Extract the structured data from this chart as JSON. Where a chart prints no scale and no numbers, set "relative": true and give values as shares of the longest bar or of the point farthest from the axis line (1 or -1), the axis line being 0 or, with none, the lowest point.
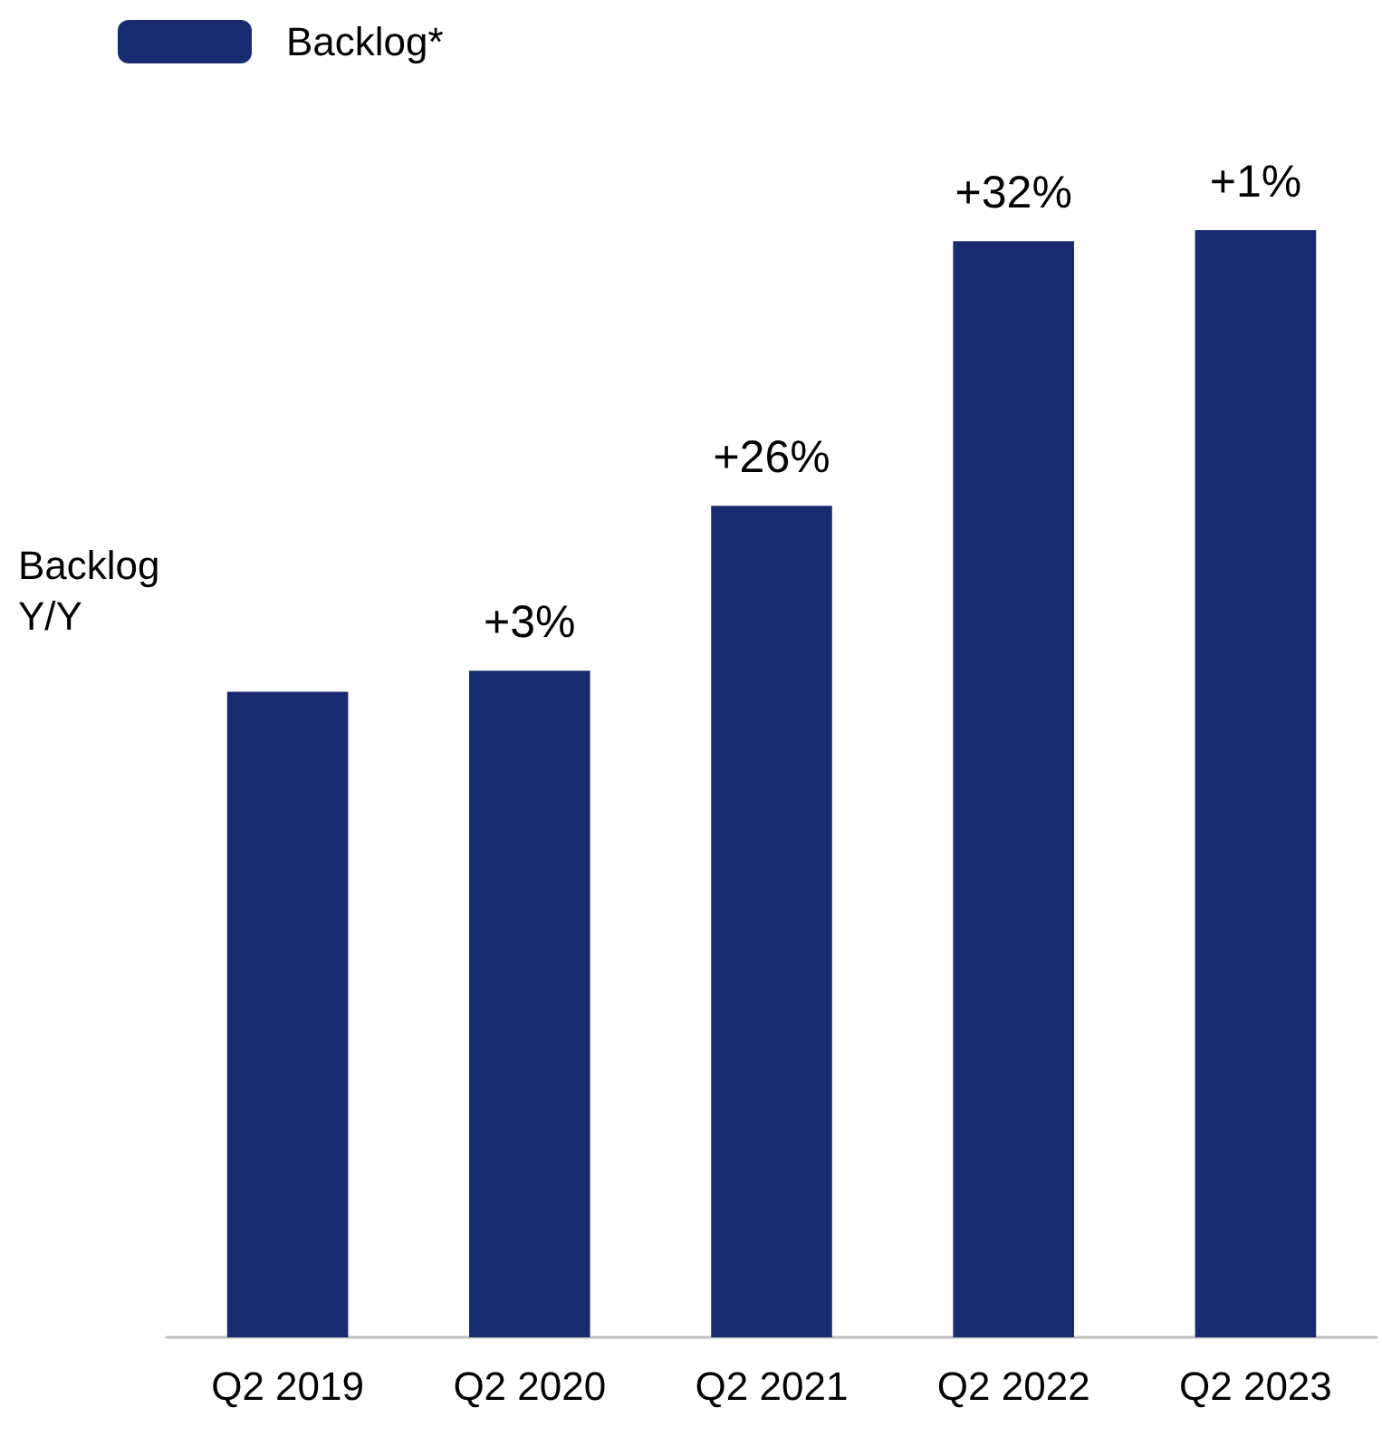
{
  "chart_data": {
    "type": "bar",
    "relative": true,
    "categories": [
      "Q2 2019",
      "Q2 2020",
      "Q2 2021",
      "Q2 2022",
      "Q2 2023"
    ],
    "series": [
      {
        "name": "Backlog*",
        "color": "#172b6e",
        "values": [
          0.583,
          0.602,
          0.751,
          0.99,
          1
        ]
      }
    ],
    "annotations": [
      "Backlog\nY/Y",
      {
        "text": "+3%",
        "x": "Q2 2020",
        "y": 0.602
      },
      {
        "text": "+26%",
        "x": "Q2 2021",
        "y": 0.751
      },
      {
        "text": "+32%",
        "x": "Q2 2022",
        "y": 0.99
      },
      {
        "text": "+1%",
        "x": "Q2 2023",
        "y": 1
      }
    ],
    "legend": "top left",
    "grid": false
  }
}
